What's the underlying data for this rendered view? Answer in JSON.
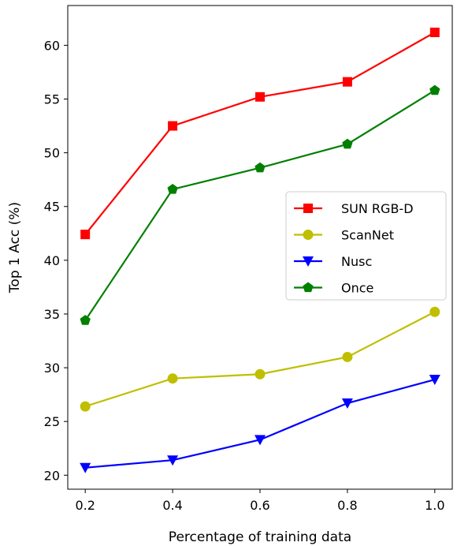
{
  "chart_data": {
    "type": "line",
    "title": "",
    "xlabel": "Percentage of training data",
    "ylabel": "Top 1 Acc (%)",
    "x": [
      0.2,
      0.4,
      0.6,
      0.8,
      1.0
    ],
    "xticks": [
      "0.2",
      "0.4",
      "0.6",
      "0.8",
      "1.0"
    ],
    "yticks": [
      "20",
      "25",
      "30",
      "35",
      "40",
      "45",
      "50",
      "55",
      "60"
    ],
    "xlim": [
      0.16,
      1.04
    ],
    "ylim": [
      18.7,
      63.7
    ],
    "grid": false,
    "legend_position": "center-right",
    "series": [
      {
        "name": "SUN RGB-D",
        "values": [
          42.4,
          52.5,
          55.2,
          56.6,
          61.2
        ],
        "color": "#ff0000",
        "marker": "square"
      },
      {
        "name": "ScanNet",
        "values": [
          26.4,
          29.0,
          29.4,
          31.0,
          35.2
        ],
        "color": "#bfbf00",
        "marker": "circle"
      },
      {
        "name": "Nusc",
        "values": [
          20.7,
          21.4,
          23.3,
          26.7,
          28.9
        ],
        "color": "#0000ff",
        "marker": "triangle-down"
      },
      {
        "name": "Once",
        "values": [
          34.4,
          46.6,
          48.6,
          50.8,
          55.8
        ],
        "color": "#008000",
        "marker": "pentagon"
      }
    ]
  }
}
